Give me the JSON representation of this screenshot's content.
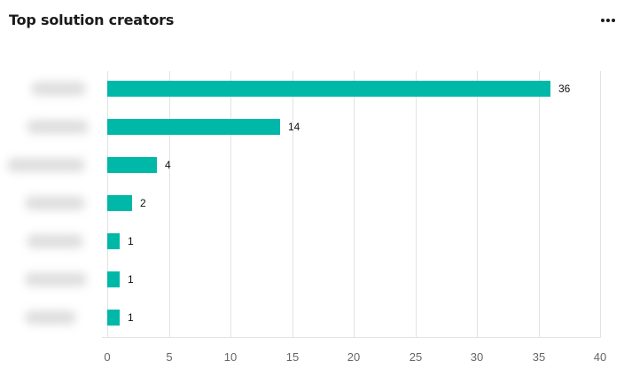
{
  "header": {
    "title": "Top solution creators",
    "more_icon": "more-horizontal-icon"
  },
  "chart_data": {
    "type": "bar",
    "orientation": "horizontal",
    "title": "Top solution creators",
    "categories": [
      "(redacted 1)",
      "(redacted 2)",
      "(redacted 3)",
      "(redacted 4)",
      "(redacted 5)",
      "(redacted 6)",
      "(redacted 7)"
    ],
    "categories_blurred": true,
    "values": [
      36,
      14,
      4,
      2,
      1,
      1,
      1
    ],
    "xlabel": "",
    "ylabel": "",
    "xlim": [
      0,
      40
    ],
    "x_ticks": [
      "0",
      "5",
      "10",
      "15",
      "20",
      "25",
      "30",
      "35",
      "40"
    ],
    "grid": "vertical",
    "data_labels": [
      "36",
      "14",
      "4",
      "2",
      "1",
      "1",
      "1"
    ],
    "bar_color": "#00b8a8",
    "legend": null
  }
}
